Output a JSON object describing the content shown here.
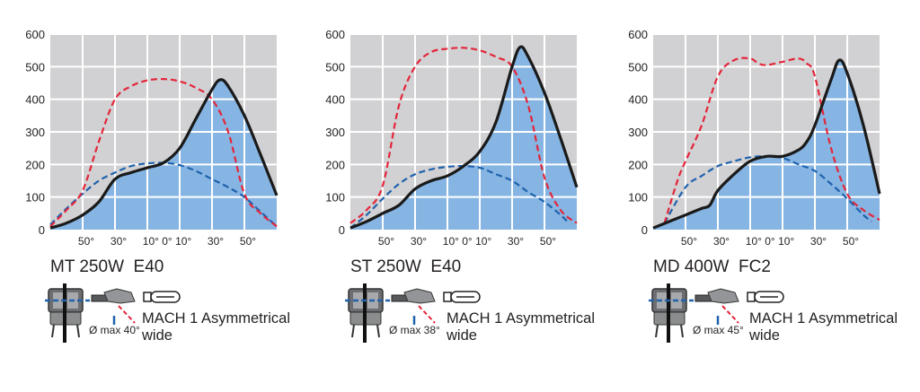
{
  "colors": {
    "plot_bg": "#d1d1d3",
    "grid": "#ffffff",
    "fill": "#86b5e3",
    "solid": "#1a1a1a",
    "red_dashed": "#e3263a",
    "blue_dashed": "#1f62ad"
  },
  "chart_data": [
    {
      "type": "line",
      "title": "MT 250W  E40",
      "ylim": [
        0,
        600
      ],
      "xlim": [
        -70,
        70
      ],
      "yticks": [
        "0",
        "100",
        "200",
        "300",
        "400",
        "500",
        "600"
      ],
      "xtick_labels": [
        "50°",
        "30°",
        "10° 0° 10°",
        "30°",
        "50°"
      ],
      "series": [
        {
          "name": "solid",
          "style": "solid-filled",
          "x": [
            -70,
            -60,
            -50,
            -40,
            -30,
            -20,
            -10,
            0,
            10,
            20,
            30,
            35,
            40,
            50,
            60,
            70
          ],
          "y": [
            5,
            20,
            45,
            85,
            155,
            175,
            190,
            205,
            250,
            340,
            430,
            460,
            440,
            350,
            230,
            105
          ]
        },
        {
          "name": "red-dashed",
          "style": "dashed",
          "x": [
            -70,
            -60,
            -50,
            -40,
            -30,
            -20,
            -10,
            0,
            10,
            20,
            30,
            40,
            50,
            60,
            70
          ],
          "y": [
            10,
            60,
            120,
            270,
            400,
            440,
            458,
            462,
            455,
            435,
            400,
            300,
            110,
            50,
            10
          ]
        },
        {
          "name": "blue-dashed",
          "style": "dashed",
          "x": [
            -70,
            -60,
            -50,
            -40,
            -30,
            -20,
            -10,
            0,
            10,
            20,
            30,
            40,
            50,
            60,
            70
          ],
          "y": [
            15,
            65,
            110,
            150,
            175,
            195,
            203,
            205,
            198,
            180,
            155,
            130,
            100,
            55,
            10
          ]
        }
      ],
      "footer": {
        "angle": "Ø max 40°",
        "desc_line1": "MACH 1 Asymmetrical",
        "desc_line2": "wide"
      }
    },
    {
      "type": "line",
      "title": "ST 250W  E40",
      "ylim": [
        0,
        600
      ],
      "xlim": [
        -70,
        70
      ],
      "yticks": [
        "0",
        "100",
        "200",
        "300",
        "400",
        "500",
        "600"
      ],
      "xtick_labels": [
        "50°",
        "30°",
        "10° 0° 10°",
        "30°",
        "50°"
      ],
      "series": [
        {
          "name": "solid",
          "style": "solid-filled",
          "x": [
            -70,
            -60,
            -50,
            -40,
            -30,
            -20,
            -10,
            0,
            10,
            20,
            30,
            35,
            40,
            50,
            60,
            70
          ],
          "y": [
            5,
            25,
            50,
            75,
            125,
            150,
            165,
            195,
            240,
            330,
            500,
            560,
            530,
            420,
            280,
            130
          ]
        },
        {
          "name": "red-dashed",
          "style": "dashed",
          "x": [
            -70,
            -60,
            -50,
            -40,
            -30,
            -20,
            -10,
            0,
            10,
            20,
            30,
            40,
            50,
            60,
            70
          ],
          "y": [
            20,
            60,
            135,
            380,
            500,
            545,
            555,
            558,
            550,
            530,
            500,
            380,
            160,
            60,
            20
          ]
        },
        {
          "name": "blue-dashed",
          "style": "dashed",
          "x": [
            -70,
            -60,
            -50,
            -40,
            -30,
            -20,
            -10,
            0,
            10,
            20,
            30,
            40,
            50,
            60,
            65
          ],
          "y": [
            5,
            45,
            95,
            140,
            170,
            185,
            193,
            195,
            190,
            170,
            150,
            115,
            85,
            45,
            20
          ]
        }
      ],
      "footer": {
        "angle": "Ø max 38°",
        "desc_line1": "MACH 1 Asymmetrical",
        "desc_line2": "wide"
      }
    },
    {
      "type": "line",
      "title": "MD 400W  FC2",
      "ylim": [
        0,
        600
      ],
      "xlim": [
        -70,
        70
      ],
      "yticks": [
        "0",
        "100",
        "200",
        "300",
        "400",
        "500",
        "600"
      ],
      "xtick_labels": [
        "50°",
        "30°",
        "10° 0° 10°",
        "30°",
        "50°"
      ],
      "series": [
        {
          "name": "solid",
          "style": "solid-filled",
          "x": [
            -70,
            -60,
            -50,
            -40,
            -35,
            -30,
            -20,
            -10,
            0,
            10,
            20,
            25,
            30,
            40,
            45,
            50,
            60,
            70
          ],
          "y": [
            5,
            25,
            45,
            65,
            75,
            120,
            170,
            210,
            225,
            225,
            245,
            270,
            320,
            460,
            520,
            480,
            320,
            110
          ]
        },
        {
          "name": "red-dashed",
          "style": "dashed",
          "x": [
            -63,
            -55,
            -50,
            -40,
            -30,
            -20,
            -10,
            -5,
            0,
            10,
            20,
            25,
            30,
            40,
            50,
            60,
            70
          ],
          "y": [
            20,
            150,
            210,
            320,
            470,
            520,
            525,
            510,
            505,
            515,
            525,
            510,
            470,
            250,
            110,
            60,
            30
          ]
        },
        {
          "name": "blue-dashed",
          "style": "dashed",
          "x": [
            -63,
            -50,
            -40,
            -30,
            -20,
            -10,
            0,
            10,
            20,
            30,
            40,
            50,
            60,
            65
          ],
          "y": [
            20,
            130,
            165,
            195,
            210,
            222,
            225,
            220,
            200,
            180,
            140,
            95,
            45,
            25
          ]
        }
      ],
      "footer": {
        "angle": "Ø max 45°",
        "desc_line1": "MACH 1 Asymmetrical",
        "desc_line2": "wide"
      }
    }
  ]
}
